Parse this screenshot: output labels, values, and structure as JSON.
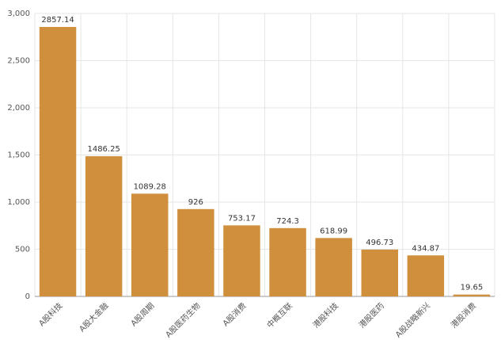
{
  "chart_data": {
    "type": "bar",
    "categories": [
      "A股科技",
      "A股大金融",
      "A股周期",
      "A股医药生物",
      "A股消费",
      "中概互联",
      "港股科技",
      "港股医药",
      "A股战略新兴",
      "港股消费"
    ],
    "values": [
      2857.14,
      1486.25,
      1089.28,
      926,
      753.17,
      724.3,
      618.99,
      496.73,
      434.87,
      19.65
    ],
    "color": "#cf8f3c",
    "ylim": [
      0,
      3000
    ],
    "yticks": [
      0,
      500,
      {
        "value": 1000,
        "label": "1,000"
      },
      {
        "value": 1500,
        "label": "1,500"
      },
      {
        "value": 2000,
        "label": "2,000"
      },
      {
        "value": 2500,
        "label": "2,500"
      },
      {
        "value": 3000,
        "label": "3,000"
      }
    ],
    "grid": true
  }
}
